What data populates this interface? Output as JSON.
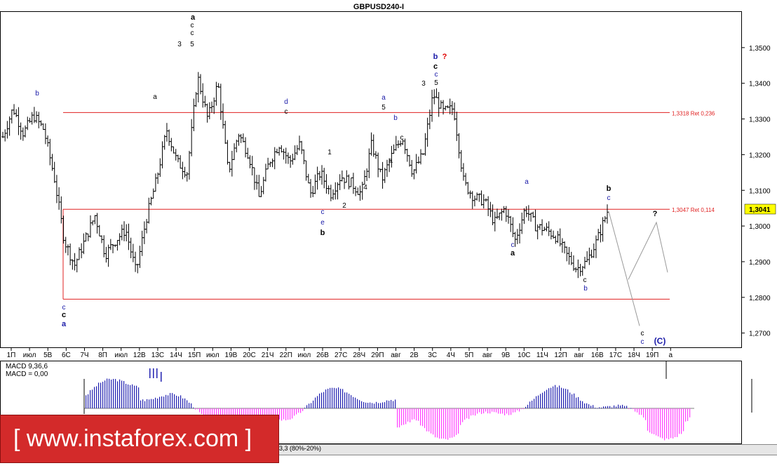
{
  "window": {
    "title": "GBPUSD240-I"
  },
  "price_axis": {
    "ticks": [
      "1,3500",
      "1,3400",
      "1,3300",
      "1,3200",
      "1,3100",
      "1,3000",
      "1,2900",
      "1,2800",
      "1,2700"
    ],
    "current_price": "1,3041"
  },
  "time_axis": {
    "labels": [
      "1П",
      "июл",
      "5В",
      "6С",
      "7Ч",
      "8П",
      "июл",
      "12В",
      "13С",
      "14Ч",
      "15П",
      "июл",
      "19В",
      "20С",
      "21Ч",
      "22П",
      "июл",
      "26В",
      "27С",
      "28Ч",
      "29П",
      "авг",
      "2В",
      "3С",
      "4Ч",
      "5П",
      "авг",
      "9В",
      "10С",
      "11Ч",
      "12П",
      "авг",
      "16В",
      "17С",
      "18Ч",
      "19П",
      "а"
    ]
  },
  "levels": {
    "fib_upper": "1,3318 Ret 0,236",
    "fib_lower": "1,3047 Ret 0,114"
  },
  "macd": {
    "label": "MACD 9,36,6",
    "value": "MACD = 0,00"
  },
  "watermark": {
    "text": "[ www.instaforex.com ]"
  },
  "bottom_strip": {
    "text": "3,3 (80%-20%)"
  },
  "colors": {
    "grid": "#000000",
    "level_line": "#e02020",
    "wave_blue": "#1a1aa8",
    "wave_red": "#e00000",
    "macd_positive": "#2020b0",
    "macd_negative": "#ff40ff",
    "price_badge": "#ffff00"
  },
  "chart_data": {
    "type": "ohlc",
    "symbol": "GBPUSD240-I",
    "y_range": [
      1.266,
      1.36
    ],
    "horizontal_levels": [
      {
        "value": 1.3318,
        "label": "1,3318 Ret 0,236"
      },
      {
        "value": 1.3047,
        "label": "1,3047 Ret 0,114"
      },
      {
        "value": 1.2795,
        "label": ""
      }
    ],
    "series_path": [
      1.325,
      1.333,
      1.326,
      1.331,
      1.327,
      1.314,
      1.296,
      1.289,
      1.296,
      1.303,
      1.292,
      1.296,
      1.299,
      1.287,
      1.302,
      1.313,
      1.327,
      1.318,
      1.315,
      1.342,
      1.33,
      1.34,
      1.315,
      1.326,
      1.32,
      1.308,
      1.318,
      1.323,
      1.318,
      1.323,
      1.309,
      1.315,
      1.309,
      1.314,
      1.312,
      1.309,
      1.323,
      1.313,
      1.32,
      1.325,
      1.315,
      1.32,
      1.337,
      1.332,
      1.333,
      1.312,
      1.308,
      1.307,
      1.301,
      1.305,
      1.296,
      1.305,
      1.3,
      1.299,
      1.297,
      1.292,
      1.288,
      1.29,
      1.296,
      1.3041
    ],
    "projection": {
      "points": [
        [
          1.3041,
          0
        ],
        [
          1.272,
          1
        ],
        [
          1.285,
          0.5
        ],
        [
          1.301,
          1.2
        ],
        [
          1.287,
          1.45
        ]
      ]
    },
    "wave_labels": [
      {
        "text": "a",
        "bold": true,
        "color": "#000000"
      },
      {
        "text": "c",
        "bold": false,
        "color": "#000000"
      },
      {
        "text": "c",
        "bold": false,
        "color": "#000000"
      },
      {
        "text": "5",
        "bold": false,
        "color": "#000000"
      },
      {
        "text": "3",
        "bold": false,
        "color": "#000000"
      },
      {
        "text": "b",
        "bold": true,
        "color": "#1a1aa8"
      },
      {
        "text": "?",
        "bold": true,
        "color": "#e00000"
      },
      {
        "text": "c",
        "bold": true,
        "color": "#000000"
      },
      {
        "text": "c",
        "bold": false,
        "color": "#1a1aa8"
      },
      {
        "text": "5",
        "bold": false,
        "color": "#000000"
      },
      {
        "text": "3",
        "bold": false,
        "color": "#000000"
      },
      {
        "text": "a",
        "bold": false,
        "color": "#000000"
      },
      {
        "text": "b",
        "bold": false,
        "color": "#1a1aa8"
      },
      {
        "text": "d",
        "bold": false,
        "color": "#1a1aa8"
      },
      {
        "text": "c",
        "bold": false,
        "color": "#000000"
      },
      {
        "text": "a",
        "bold": false,
        "color": "#1a1aa8"
      },
      {
        "text": "5",
        "bold": false,
        "color": "#000000"
      },
      {
        "text": "b",
        "bold": false,
        "color": "#1a1aa8"
      },
      {
        "text": "c",
        "bold": false,
        "color": "#000000"
      },
      {
        "text": "a",
        "bold": false,
        "color": "#000000"
      },
      {
        "text": "1",
        "bold": false,
        "color": "#000000"
      },
      {
        "text": "4",
        "bold": false,
        "color": "#000000"
      },
      {
        "text": "2",
        "bold": false,
        "color": "#000000"
      },
      {
        "text": "a",
        "bold": false,
        "color": "#1a1aa8"
      },
      {
        "text": "b",
        "bold": true,
        "color": "#000000"
      },
      {
        "text": "c",
        "bold": false,
        "color": "#1a1aa8"
      },
      {
        "text": "?",
        "bold": true,
        "color": "#000000"
      },
      {
        "text": "c",
        "bold": false,
        "color": "#000000"
      },
      {
        "text": "c",
        "bold": false,
        "color": "#1a1aa8"
      },
      {
        "text": "(C)",
        "bold": true,
        "color": "#1a1aa8"
      },
      {
        "text": "a",
        "bold": true,
        "color": "#1a1aa8"
      },
      {
        "text": "c",
        "bold": true,
        "color": "#000000"
      },
      {
        "text": "c",
        "bold": false,
        "color": "#1a1aa8"
      },
      {
        "text": "e",
        "bold": false,
        "color": "#1a1aa8"
      },
      {
        "text": "c",
        "bold": false,
        "color": "#1a1aa8"
      },
      {
        "text": "b",
        "bold": true,
        "color": "#000000"
      },
      {
        "text": "a",
        "bold": true,
        "color": "#000000"
      },
      {
        "text": "c",
        "bold": false,
        "color": "#1a1aa8"
      },
      {
        "text": "b",
        "bold": false,
        "color": "#1a1aa8"
      },
      {
        "text": "c",
        "bold": false,
        "color": "#000000"
      }
    ]
  }
}
